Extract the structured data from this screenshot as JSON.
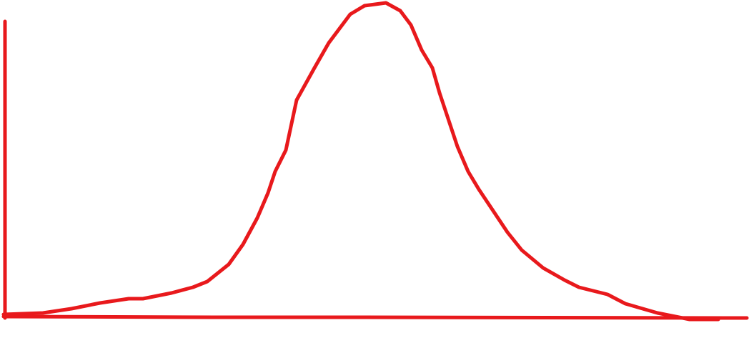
{
  "diagram": {
    "shape": "bell-curve",
    "style": "hand-drawn",
    "stroke_color": "#e8191c",
    "background_color": "#ffffff",
    "has_y_axis": true,
    "has_x_axis": true,
    "labels": []
  }
}
